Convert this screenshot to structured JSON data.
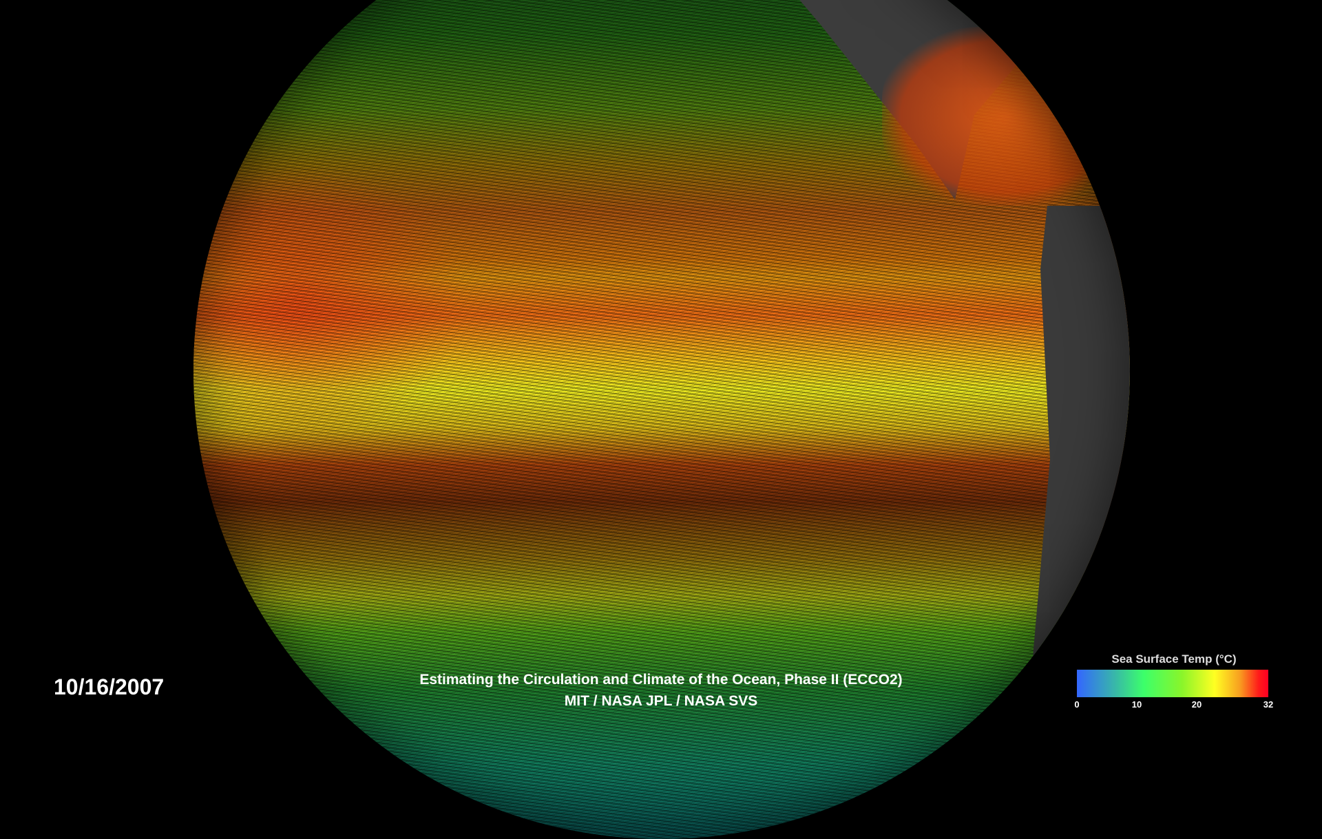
{
  "date": "10/16/2007",
  "caption": {
    "title": "Estimating the Circulation and Climate of the Ocean, Phase II (ECCO2)",
    "credits": "MIT / NASA JPL / NASA SVS"
  },
  "legend": {
    "title": "Sea Surface Temp (°C)",
    "ticks": [
      "0",
      "10",
      "20",
      "32"
    ],
    "range": [
      0,
      32
    ],
    "colors": [
      "#3366ff",
      "#3cff6a",
      "#ffff22",
      "#ff0022"
    ]
  }
}
